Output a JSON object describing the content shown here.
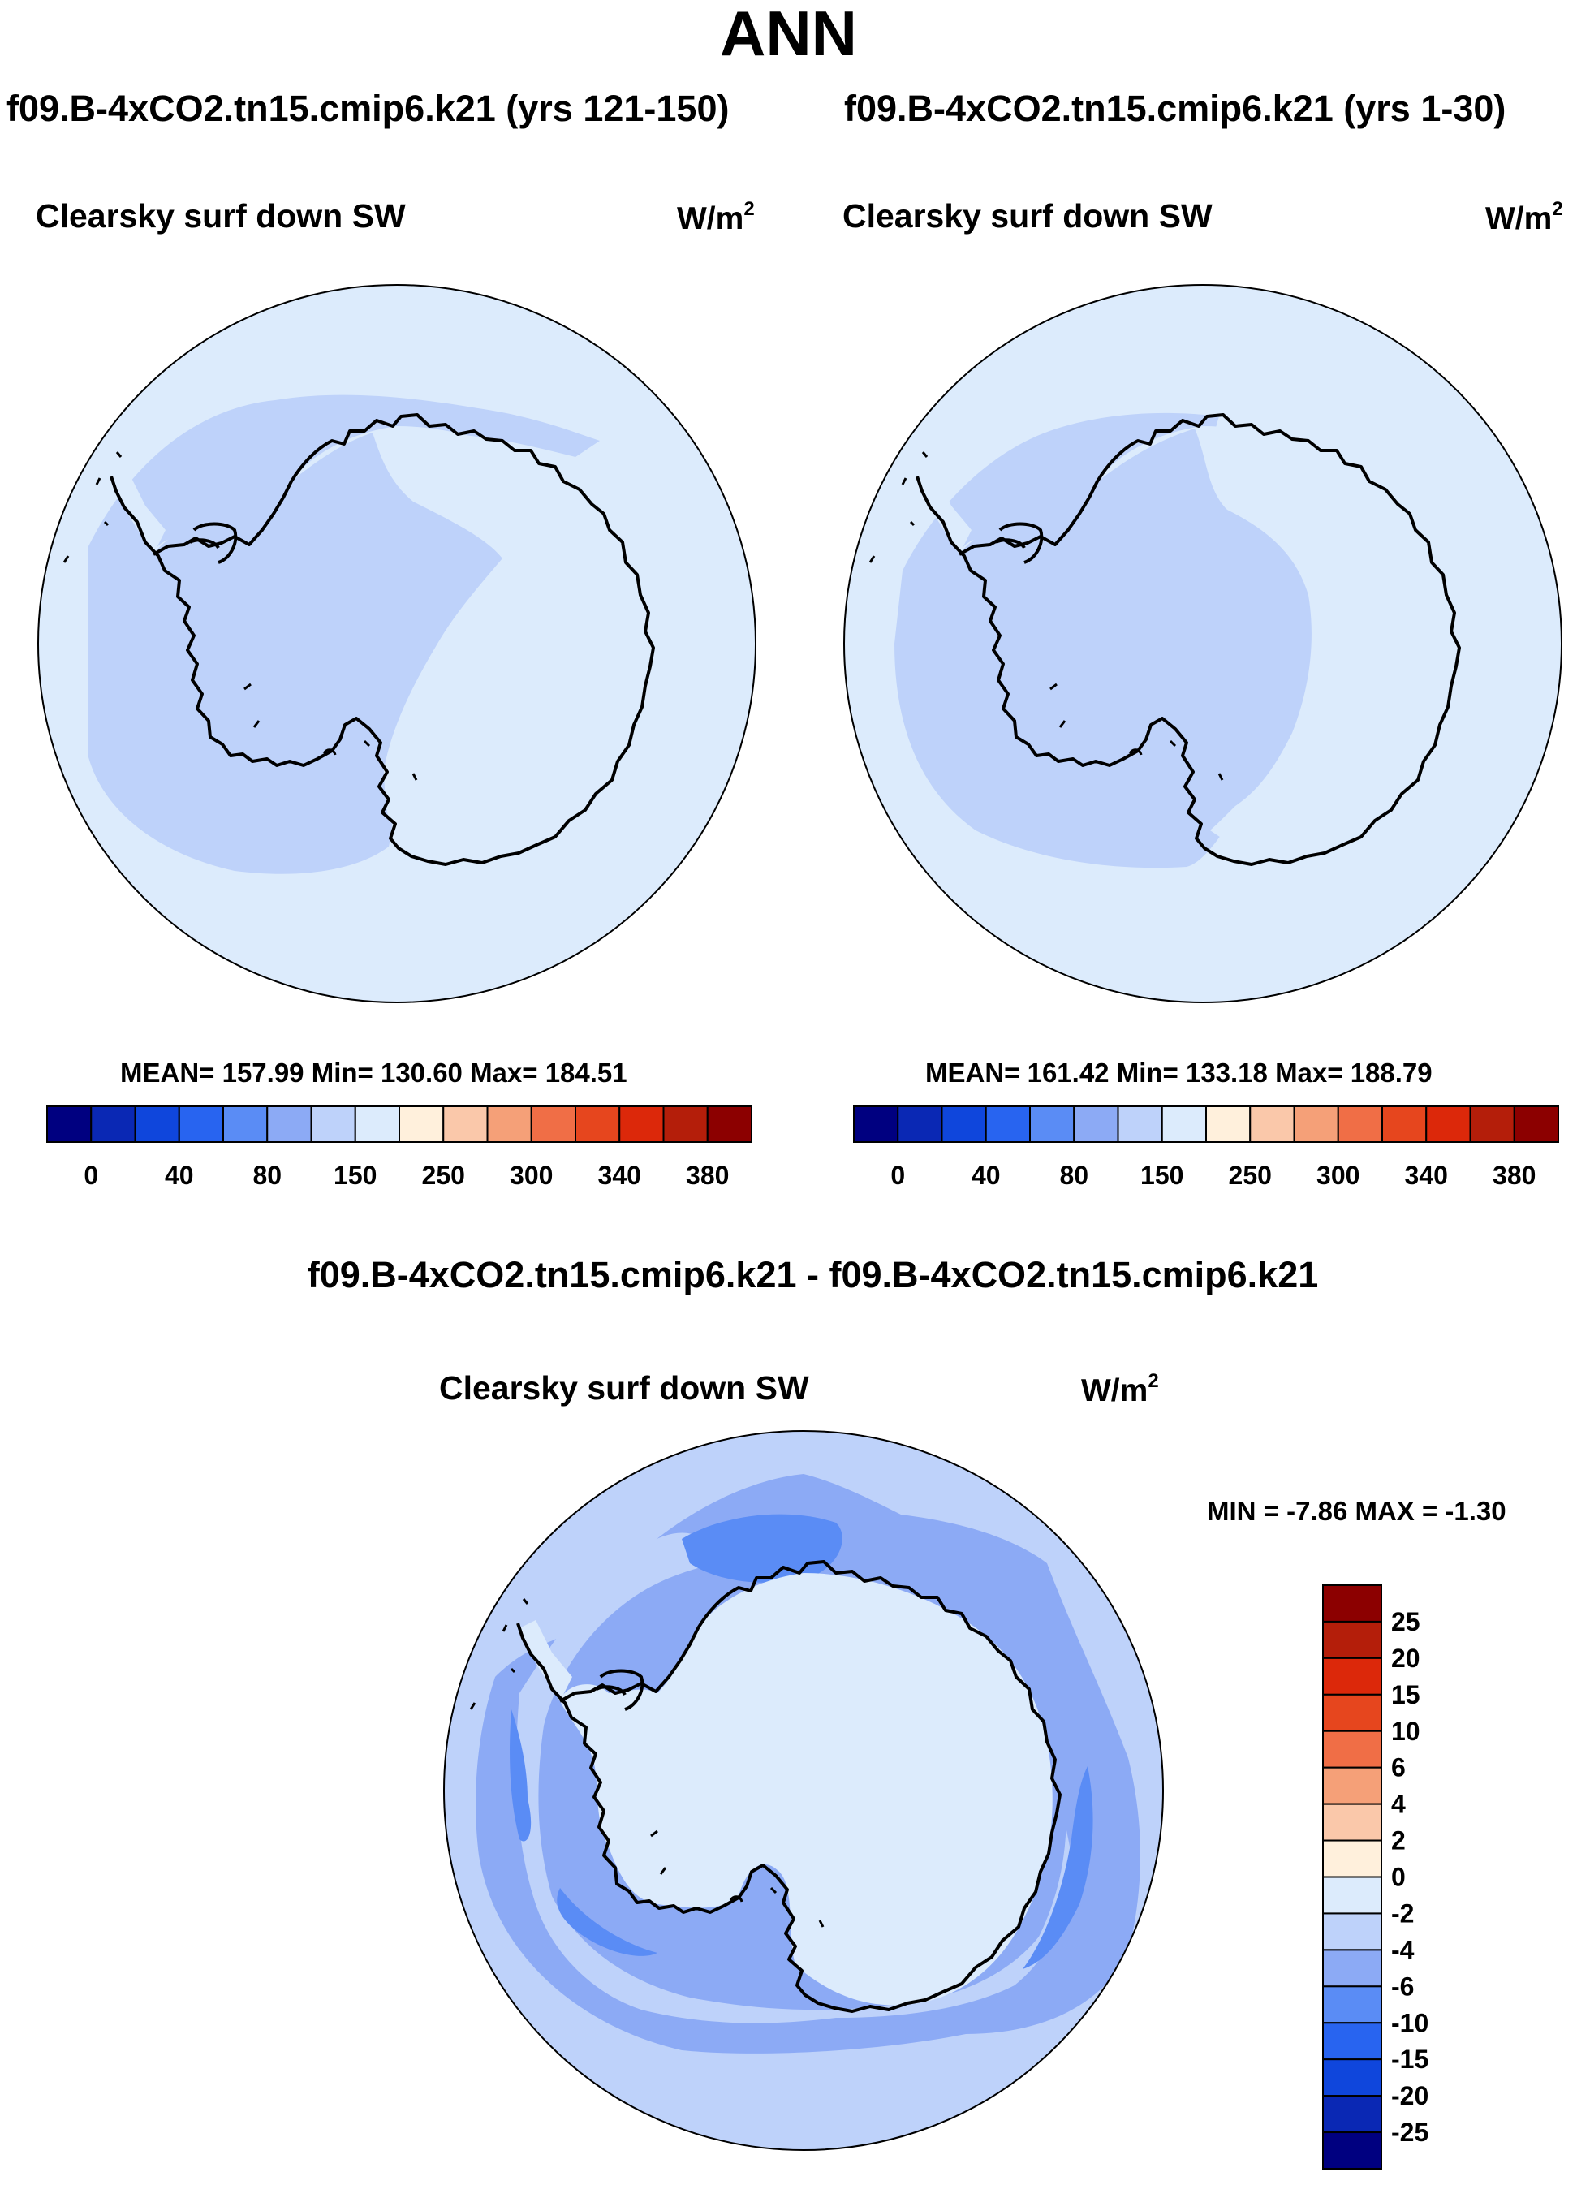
{
  "title": "ANN",
  "panels": [
    {
      "case": "f09.B-4xCO2.tn15.cmip6.k21 (yrs 121-150)",
      "variable": "Clearsky surf down SW",
      "units_base": "W/m",
      "units_exp": "2",
      "stats": {
        "mean": "157.99",
        "min": "130.60",
        "max": "184.51"
      },
      "stats_text": "MEAN= 157.99  Min= 130.60  Max= 184.51"
    },
    {
      "case": "f09.B-4xCO2.tn15.cmip6.k21 (yrs 1-30)",
      "variable": "Clearsky surf down SW",
      "units_base": "W/m",
      "units_exp": "2",
      "stats": {
        "mean": "161.42",
        "min": "133.18",
        "max": "188.79"
      },
      "stats_text": "MEAN= 161.42  Min= 133.18  Max= 188.79"
    }
  ],
  "difference": {
    "title": "f09.B-4xCO2.tn15.cmip6.k21 - f09.B-4xCO2.tn15.cmip6.k21",
    "variable": "Clearsky surf down SW",
    "units_base": "W/m",
    "units_exp": "2",
    "stats": {
      "min": "-7.86",
      "max": "-1.30"
    },
    "stats_text": "MIN =  -7.86 MAX =  -1.30"
  },
  "chart_data": [
    {
      "type": "heatmap",
      "projection": "south polar stereographic",
      "title": "Clearsky surf down SW",
      "units": "W/m2",
      "colorbar_orientation": "horizontal",
      "colorbar_levels": [
        "0",
        "40",
        "80",
        "150",
        "250",
        "300",
        "340",
        "380"
      ],
      "colors": [
        "#000080",
        "#0a28b4",
        "#0f46dc",
        "#2864f0",
        "#5a8cf5",
        "#8caaf5",
        "#bed2fa",
        "#dcebfc",
        "#fff0dc",
        "#fac8aa",
        "#f5a078",
        "#f06e46",
        "#e6461e",
        "#dc280a",
        "#b41e0a",
        "#8c0000"
      ]
    },
    {
      "type": "heatmap",
      "projection": "south polar stereographic",
      "title": "Clearsky surf down SW",
      "units": "W/m2",
      "colorbar_orientation": "horizontal",
      "colorbar_levels": [
        "0",
        "40",
        "80",
        "150",
        "250",
        "300",
        "340",
        "380"
      ],
      "colors": [
        "#000080",
        "#0a28b4",
        "#0f46dc",
        "#2864f0",
        "#5a8cf5",
        "#8caaf5",
        "#bed2fa",
        "#dcebfc",
        "#fff0dc",
        "#fac8aa",
        "#f5a078",
        "#f06e46",
        "#e6461e",
        "#dc280a",
        "#b41e0a",
        "#8c0000"
      ]
    },
    {
      "type": "heatmap",
      "projection": "south polar stereographic",
      "title": "Clearsky surf down SW",
      "units": "W/m2",
      "colorbar_orientation": "vertical",
      "colorbar_levels": [
        "25",
        "20",
        "15",
        "10",
        "6",
        "4",
        "2",
        "0",
        "-2",
        "-4",
        "-6",
        "-10",
        "-15",
        "-20",
        "-25"
      ],
      "colors": [
        "#8c0000",
        "#b41e0a",
        "#dc280a",
        "#e6461e",
        "#f06e46",
        "#f5a078",
        "#fac8aa",
        "#fff0dc",
        "#dcebfc",
        "#bed2fa",
        "#8caaf5",
        "#5a8cf5",
        "#2864f0",
        "#0f46dc",
        "#0a28b4",
        "#000080"
      ]
    }
  ]
}
